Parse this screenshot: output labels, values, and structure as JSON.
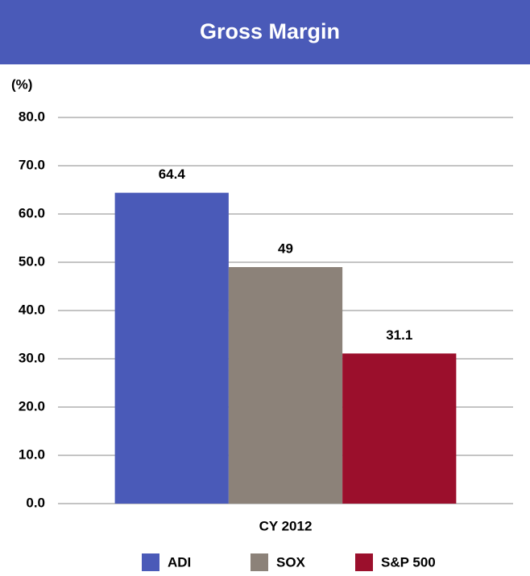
{
  "chart_data": {
    "type": "bar",
    "title": "Gross Margin",
    "y_label": "(%)",
    "categories": [
      "CY 2012"
    ],
    "series": [
      {
        "name": "ADI",
        "color": "#4a5ab8",
        "values": [
          64.4
        ]
      },
      {
        "name": "SOX",
        "color": "#8c8279",
        "values": [
          49
        ]
      },
      {
        "name": "S&P 500",
        "color": "#9b0f2c",
        "values": [
          31.1
        ]
      }
    ],
    "ylim": [
      0,
      80
    ],
    "yticks": [
      {
        "value": 0,
        "label": "0.0"
      },
      {
        "value": 10,
        "label": "10.0"
      },
      {
        "value": 20,
        "label": "20.0"
      },
      {
        "value": 30,
        "label": "30.0"
      },
      {
        "value": 40,
        "label": "40.0"
      },
      {
        "value": 50,
        "label": "50.0"
      },
      {
        "value": 60,
        "label": "60.0"
      },
      {
        "value": 70,
        "label": "70.0"
      },
      {
        "value": 80,
        "label": "80.0"
      }
    ],
    "grid": true,
    "legend": "bottom",
    "banner_color": "#4a5ab8"
  }
}
